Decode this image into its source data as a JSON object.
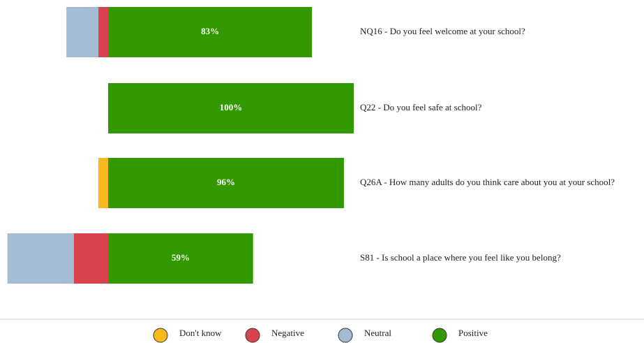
{
  "chart_data": {
    "type": "diverging_bar",
    "categories": [
      "NQ16 - Do you feel welcome at your school?",
      "Q22 - Do you feel safe at school?",
      "Q26A - How many adults do you think care about you at your school?",
      "S81 - Is school a place where you feel like you belong?"
    ],
    "series": [
      {
        "name": "Don't know",
        "color": "#f9b820",
        "side": "negative",
        "values": [
          0,
          0,
          4,
          0
        ]
      },
      {
        "name": "Negative",
        "color": "#d9434e",
        "side": "negative",
        "values": [
          4,
          0,
          0,
          14
        ]
      },
      {
        "name": "Neutral",
        "color": "#a3bcd3",
        "side": "negative",
        "values": [
          13,
          0,
          0,
          27
        ]
      },
      {
        "name": "Positive",
        "color": "#339900",
        "side": "positive",
        "values": [
          83,
          100,
          96,
          59
        ],
        "value_labels": [
          "83%",
          "100%",
          "96%",
          "59%"
        ]
      }
    ]
  }
}
